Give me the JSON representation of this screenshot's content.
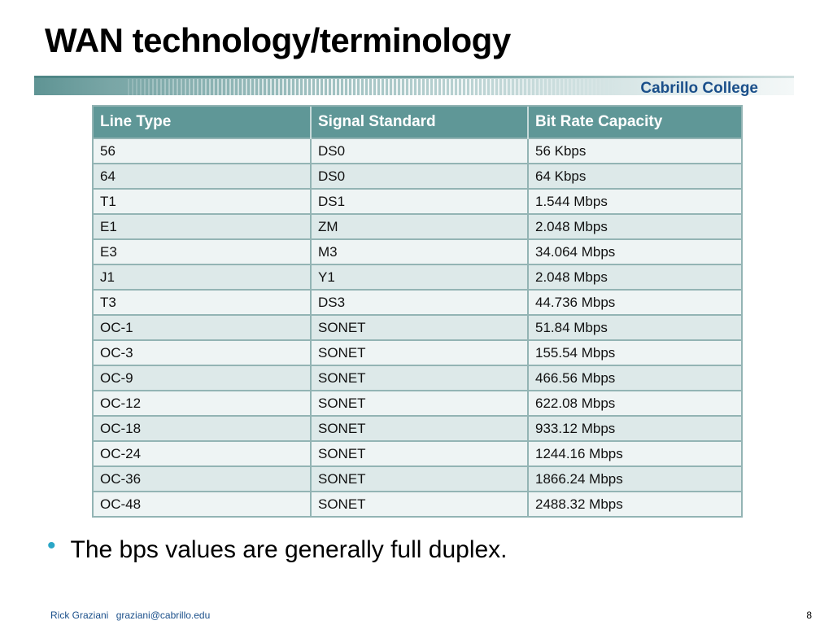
{
  "slide": {
    "title": "WAN technology/terminology",
    "brand": "Cabrillo College"
  },
  "table": {
    "headers": [
      "Line Type",
      "Signal Standard",
      "Bit Rate Capacity"
    ],
    "rows": [
      [
        "56",
        "DS0",
        "56 Kbps"
      ],
      [
        "64",
        "DS0",
        "64 Kbps"
      ],
      [
        "T1",
        "DS1",
        "1.544 Mbps"
      ],
      [
        "E1",
        "ZM",
        "2.048 Mbps"
      ],
      [
        "E3",
        "M3",
        "34.064 Mbps"
      ],
      [
        "J1",
        "Y1",
        "2.048 Mbps"
      ],
      [
        "T3",
        "DS3",
        "44.736 Mbps"
      ],
      [
        "OC-1",
        "SONET",
        "51.84 Mbps"
      ],
      [
        "OC-3",
        "SONET",
        "155.54 Mbps"
      ],
      [
        "OC-9",
        "SONET",
        "466.56 Mbps"
      ],
      [
        "OC-12",
        "SONET",
        "622.08 Mbps"
      ],
      [
        "OC-18",
        "SONET",
        "933.12 Mbps"
      ],
      [
        "OC-24",
        "SONET",
        "1244.16 Mbps"
      ],
      [
        "OC-36",
        "SONET",
        "1866.24 Mbps"
      ],
      [
        "OC-48",
        "SONET",
        "2488.32 Mbps"
      ]
    ]
  },
  "bullets": [
    {
      "symbol": "•",
      "text": "The bps values are generally full duplex."
    }
  ],
  "footer": {
    "author": "Rick Graziani",
    "email": "graziani@cabrillo.edu",
    "page": "8"
  },
  "colors": {
    "header_bg": "#5f9797",
    "row_light": "#eef4f4",
    "row_dark": "#dde9e9",
    "brand_text": "#1a4f8a",
    "bullet": "#2aa6c6"
  }
}
